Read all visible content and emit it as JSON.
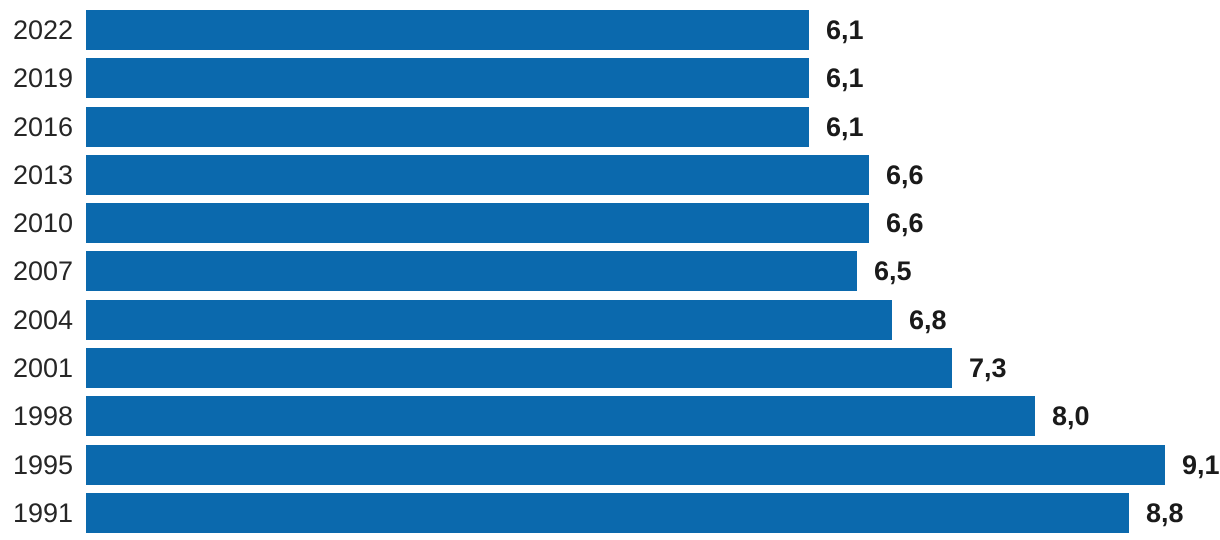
{
  "chart_data": {
    "type": "bar",
    "orientation": "horizontal",
    "categories": [
      "2022",
      "2019",
      "2016",
      "2013",
      "2010",
      "2007",
      "2004",
      "2001",
      "1998",
      "1995",
      "1991"
    ],
    "values": [
      6.1,
      6.1,
      6.1,
      6.6,
      6.6,
      6.5,
      6.8,
      7.3,
      8.0,
      9.1,
      8.8
    ],
    "value_labels": [
      "6,1",
      "6,1",
      "6,1",
      "6,6",
      "6,6",
      "6,5",
      "6,8",
      "7,3",
      "8,0",
      "9,1",
      "8,8"
    ],
    "xlim": [
      0,
      9.1
    ],
    "grid": false,
    "legend_position": "none",
    "bar_color": "#0b69ad",
    "category_label_color": "#262626",
    "value_label_color": "#1a1a1a",
    "background_color": "#ffffff"
  }
}
